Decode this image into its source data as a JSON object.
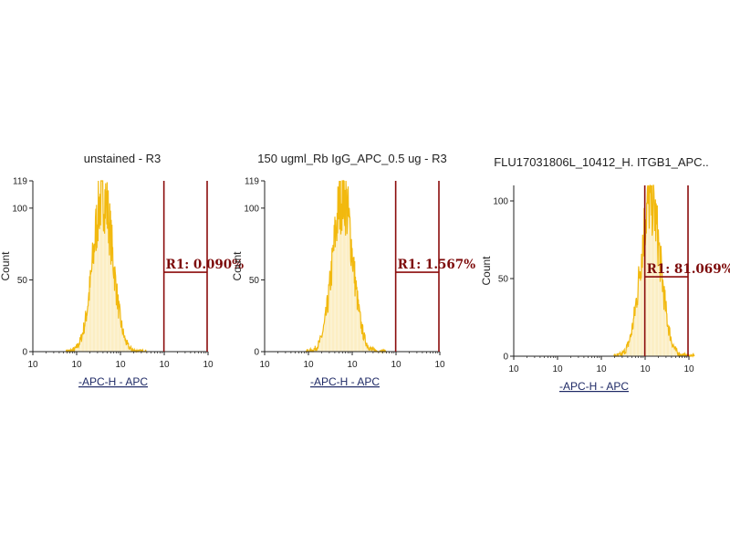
{
  "colors": {
    "histogram": "#f2b90f",
    "gate": "#8b0c0c",
    "axis": "#222222",
    "axis_label": "#1f2a66"
  },
  "chart_data": [
    {
      "type": "histogram",
      "title": "unstained - R3",
      "xlabel": "-APC-H - APC",
      "ylabel": "Count",
      "x_scale": "log",
      "xlim": [
        1,
        100000
      ],
      "ylim": [
        0,
        119
      ],
      "ytick_labels": [
        "0",
        "50",
        "100",
        "119"
      ],
      "xtick_labels": [
        "10",
        "10",
        "10",
        "10",
        "10"
      ],
      "gate": {
        "name": "R1",
        "range": [
          5500,
          100000
        ],
        "label": "R1: 0.090%"
      },
      "peak": {
        "center": 100,
        "max": 119
      }
    },
    {
      "type": "histogram",
      "title": "150 ugml_Rb IgG_APC_0.5 ug - R3",
      "xlabel": "-APC-H - APC",
      "ylabel": "Count",
      "x_scale": "log",
      "xlim": [
        1,
        100000
      ],
      "ylim": [
        0,
        119
      ],
      "ytick_labels": [
        "0",
        "50",
        "100",
        "119"
      ],
      "xtick_labels": [
        "10",
        "10",
        "10",
        "10",
        "10"
      ],
      "gate": {
        "name": "R1",
        "range": [
          5500,
          100000
        ],
        "label": "R1: 1.567%"
      },
      "peak": {
        "center": 170,
        "max": 119
      }
    },
    {
      "type": "histogram",
      "title": "FLU17031806L_10412_H. ITGB1_APC..",
      "xlabel": "-APC-H - APC",
      "ylabel": "Count",
      "x_scale": "log",
      "xlim": [
        1,
        100000
      ],
      "ylim": [
        0,
        110
      ],
      "ytick_labels": [
        "0",
        "50",
        "100"
      ],
      "xtick_labels": [
        "10",
        "10",
        "10",
        "10",
        "10"
      ],
      "gate": {
        "name": "R1",
        "range": [
          5500,
          100000
        ],
        "label": "R1: 81.069%"
      },
      "peak": {
        "center": 8000,
        "max": 110
      }
    }
  ]
}
